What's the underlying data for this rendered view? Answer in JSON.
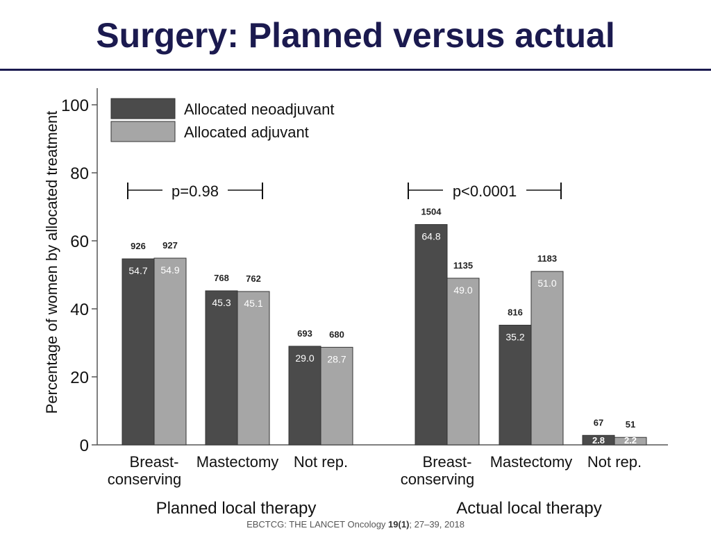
{
  "slide": {
    "title": "Surgery: Planned versus actual"
  },
  "footer": {
    "prefix": "EBCTCG: THE LANCET Oncology ",
    "volume": "19(1)",
    "suffix": ";  27–39, 2018"
  },
  "colors": {
    "neoadjuvant": "#4b4b4b",
    "adjuvant": "#a6a6a6",
    "title": "#1b1a4f"
  },
  "chart_data": {
    "type": "bar",
    "ylabel": "Percentage of women by allocated treatment",
    "ylim": [
      0,
      100
    ],
    "yticks": [
      0,
      20,
      40,
      60,
      80,
      100
    ],
    "grid": false,
    "legend_position": "top-left",
    "legend": [
      {
        "name": "Allocated neoadjuvant",
        "color_key": "neoadjuvant"
      },
      {
        "name": "Allocated adjuvant",
        "color_key": "adjuvant"
      }
    ],
    "groups": [
      {
        "label": "Planned local therapy",
        "pvalue": "p=0.98",
        "categories": [
          {
            "label": [
              "Breast-",
              "conserving"
            ],
            "neo": {
              "value": 54.7,
              "label": "54.7",
              "n": "926"
            },
            "adj": {
              "value": 54.9,
              "label": "54.9",
              "n": "927"
            }
          },
          {
            "label": [
              "Mastectomy"
            ],
            "neo": {
              "value": 45.3,
              "label": "45.3",
              "n": "768"
            },
            "adj": {
              "value": 45.1,
              "label": "45.1",
              "n": "762"
            }
          },
          {
            "label": [
              "Not rep."
            ],
            "neo": {
              "value": 29.0,
              "label": "29.0",
              "n": "693"
            },
            "adj": {
              "value": 28.7,
              "label": "28.7",
              "n": "680"
            }
          }
        ]
      },
      {
        "label": "Actual local therapy",
        "pvalue": "p<0.0001",
        "categories": [
          {
            "label": [
              "Breast-",
              "conserving"
            ],
            "neo": {
              "value": 64.8,
              "label": "64.8",
              "n": "1504"
            },
            "adj": {
              "value": 49.0,
              "label": "49.0",
              "n": "1135"
            }
          },
          {
            "label": [
              "Mastectomy"
            ],
            "neo": {
              "value": 35.2,
              "label": "35.2",
              "n": "816"
            },
            "adj": {
              "value": 51.0,
              "label": "51.0",
              "n": "1183"
            }
          },
          {
            "label": [
              "Not rep."
            ],
            "neo": {
              "value": 2.8,
              "label": "2.8",
              "n": "67"
            },
            "adj": {
              "value": 2.2,
              "label": "2.2",
              "n": "51"
            }
          }
        ]
      }
    ]
  }
}
